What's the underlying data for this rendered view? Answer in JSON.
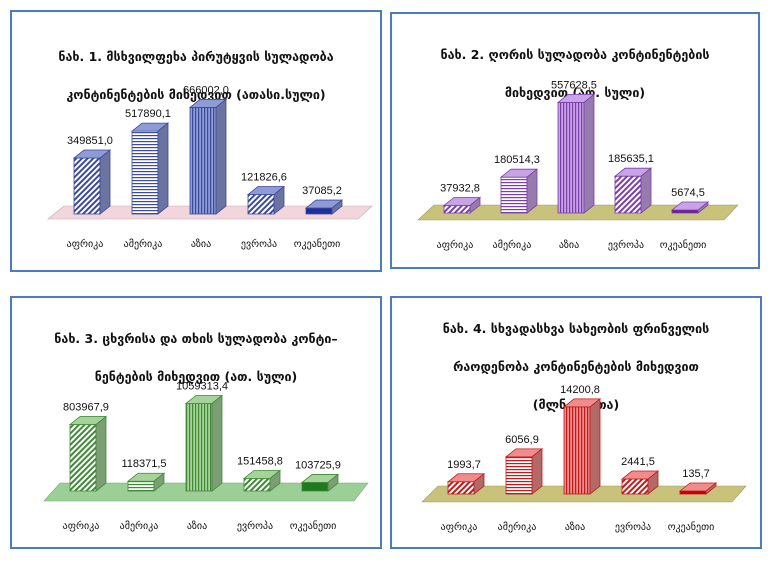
{
  "chart_data": [
    {
      "type": "bar",
      "title": "ნახ. 1. მსხვილფეხა პირუტყვის სულადობა კონტინენტების მიხედვით (ათასი.სული)",
      "title_lines": [
        "ნახ. 1. მსხვილფეხა პირუტყვის სულადობა",
        "კონტინენტების მიხედვით (ათასი.სული)"
      ],
      "categories": [
        "აფრიკა",
        "ამერიკა",
        "აზია",
        "ევროპა",
        "ოკეანეთი"
      ],
      "values": [
        349851.0,
        517890.1,
        666002.0,
        121826.6,
        37085.2
      ],
      "value_labels": [
        "349851,0",
        "517890,1",
        "666002,0",
        "121826,6",
        "37085,2"
      ],
      "colors": {
        "bar": "#8f9bd6",
        "bar_dark": "#3b4a9a",
        "floor": "#f3d6dc",
        "last_bar": "#1f2f9a"
      },
      "ylim": [
        0,
        700000
      ]
    },
    {
      "type": "bar",
      "title": "ნახ. 2. ღორის სულადობა კონტინენტების მიხედვით (ათ. სული)",
      "title_lines": [
        "ნახ. 2. ღორის სულადობა კონტინენტების",
        "მიხედვით (ათ. სული)"
      ],
      "categories": [
        "აფრიკა",
        "ამერიკა",
        "აზია",
        "ევროპა",
        "ოკეანეთი"
      ],
      "values": [
        37932.8,
        180514.3,
        557628.5,
        185635.1,
        5674.5
      ],
      "value_labels": [
        "37932,8",
        "180514,3",
        "557628,5",
        "185635,1",
        "5674,5"
      ],
      "colors": {
        "bar": "#c9a3e8",
        "bar_dark": "#7a3fa8",
        "floor": "#c8c27a",
        "last_bar": "#6b1d9a"
      },
      "ylim": [
        0,
        600000
      ]
    },
    {
      "type": "bar",
      "title": "ნახ. 3. ცხვრისა და თხის სულადობა კონტინენტების მიხედვით (ათ. სული)",
      "title_lines": [
        "ნახ. 3. ცხვრისა და თხის სულადობა კონტი–",
        "ნენტების მიხედვით (ათ. სული)"
      ],
      "categories": [
        "აფრიკა",
        "ამერიკა",
        "აზია",
        "ევროპა",
        "ოკეანეთი"
      ],
      "values": [
        803967.9,
        118371.5,
        1059313.4,
        151458.8,
        103725.9
      ],
      "value_labels": [
        "803967,9",
        "118371,5",
        "1059313,4",
        "151458,8",
        "103725,9"
      ],
      "colors": {
        "bar": "#a6d39a",
        "bar_dark": "#3f8a37",
        "floor": "#9ccf95",
        "last_bar": "#1f7a1f"
      },
      "ylim": [
        0,
        1150000
      ]
    },
    {
      "type": "bar",
      "title": "ნახ. 4. სხვადასხვა სახეობის ფრინველის რაოდენობა კონტინენტების მიხედვით (მლნ. ფრთა)",
      "title_lines": [
        "ნახ. 4. სხვადასხვა სახეობის ფრინველის",
        "რაოდენობა კონტინენტების მიხედვით",
        "(მლნ. ფრთა)"
      ],
      "categories": [
        "აფრიკა",
        "ამერიკა",
        "აზია",
        "ევროპა",
        "ოკეანეთი"
      ],
      "values": [
        1993.7,
        6056.9,
        14200.8,
        2441.5,
        135.7
      ],
      "value_labels": [
        "1993,7",
        "6056,9",
        "14200,8",
        "2441,5",
        "135,7"
      ],
      "colors": {
        "bar": "#f08c8c",
        "bar_dark": "#c01a1a",
        "floor": "#c8c27a",
        "last_bar": "#c00000"
      },
      "ylim": [
        0,
        15000
      ]
    }
  ]
}
